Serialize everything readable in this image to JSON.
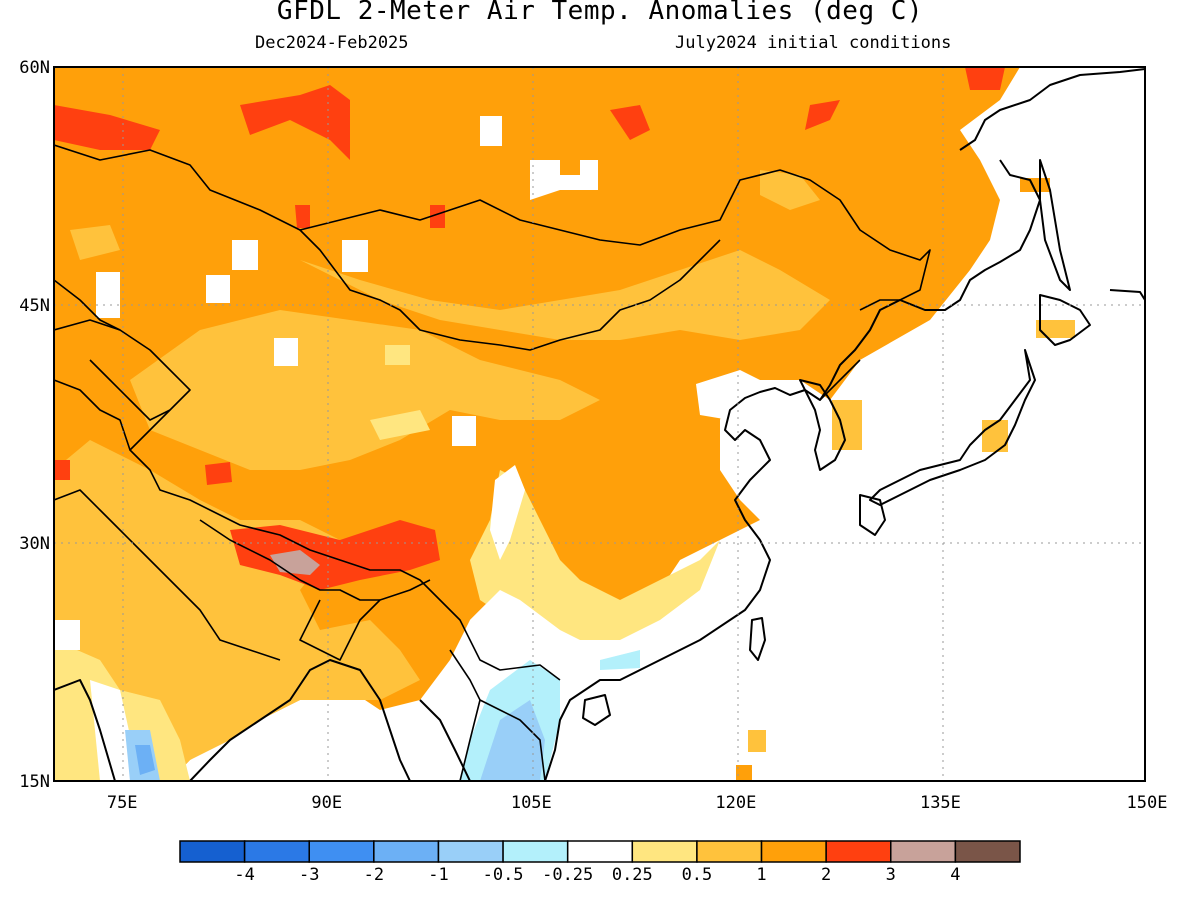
{
  "title": "GFDL 2-Meter Air Temp. Anomalies (deg C)",
  "subtitle_left": "Dec2024-Feb2025",
  "subtitle_right": "July2024 initial conditions",
  "map": {
    "lon_range": [
      70,
      150
    ],
    "lat_range": [
      15,
      60
    ],
    "lat_ticks": [
      {
        "value": 60,
        "label": "60N"
      },
      {
        "value": 45,
        "label": "45N"
      },
      {
        "value": 30,
        "label": "30N"
      },
      {
        "value": 15,
        "label": "15N"
      }
    ],
    "lon_ticks": [
      {
        "value": 75,
        "label": "75E"
      },
      {
        "value": 90,
        "label": "90E"
      },
      {
        "value": 105,
        "label": "105E"
      },
      {
        "value": 120,
        "label": "120E"
      },
      {
        "value": 135,
        "label": "135E"
      },
      {
        "value": 150,
        "label": "150E"
      }
    ],
    "grid": true,
    "region": "East Asia"
  },
  "colorbar": {
    "labels": [
      "-4",
      "-3",
      "-2",
      "-1",
      "-0.5",
      "-0.25",
      "0.25",
      "0.5",
      "1",
      "2",
      "3",
      "4"
    ],
    "colors": [
      "#1560d0",
      "#2b79e6",
      "#3f8ff2",
      "#6cb0f5",
      "#99cff8",
      "#b3f0fb",
      "#ffffff",
      "#ffe680",
      "#ffc23c",
      "#ffa00a",
      "#ff4010",
      "#c8a29a",
      "#7a5548"
    ]
  }
}
